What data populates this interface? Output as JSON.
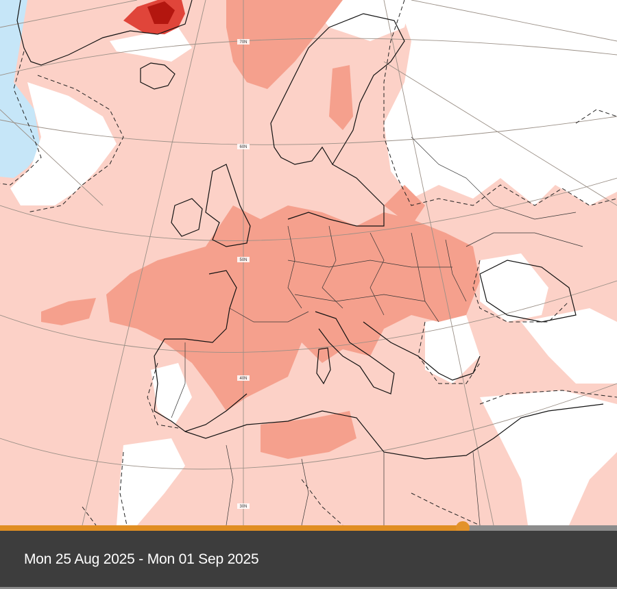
{
  "map": {
    "type": "temperature-anomaly-forecast",
    "region": "Europe, North Atlantic, North Africa",
    "projection": "polar stereographic (curved graticule)",
    "latitude_labels": [
      "70N",
      "60N",
      "50N",
      "40N",
      "30N"
    ],
    "legend_colors": {
      "slight_positive": "#fcd1c7",
      "moderate_positive": "#f5a08d",
      "strong_positive": "#e0453a",
      "extreme_positive": "#b3160f",
      "slight_negative": "#c6e6f8",
      "neutral": "#ffffff"
    },
    "outline_colors": {
      "coastline": "#111111",
      "border": "#222222",
      "graticule": "#9a8f86",
      "significance_dashed": "#222222"
    }
  },
  "timeline": {
    "progress_percent": 75,
    "track_color": "#8c8c8c",
    "fill_color": "#e08e22",
    "thumb_color": "#e3922a"
  },
  "footer": {
    "date_range": "Mon 25 Aug 2025 - Mon 01 Sep 2025",
    "background": "#3d3d3d"
  }
}
